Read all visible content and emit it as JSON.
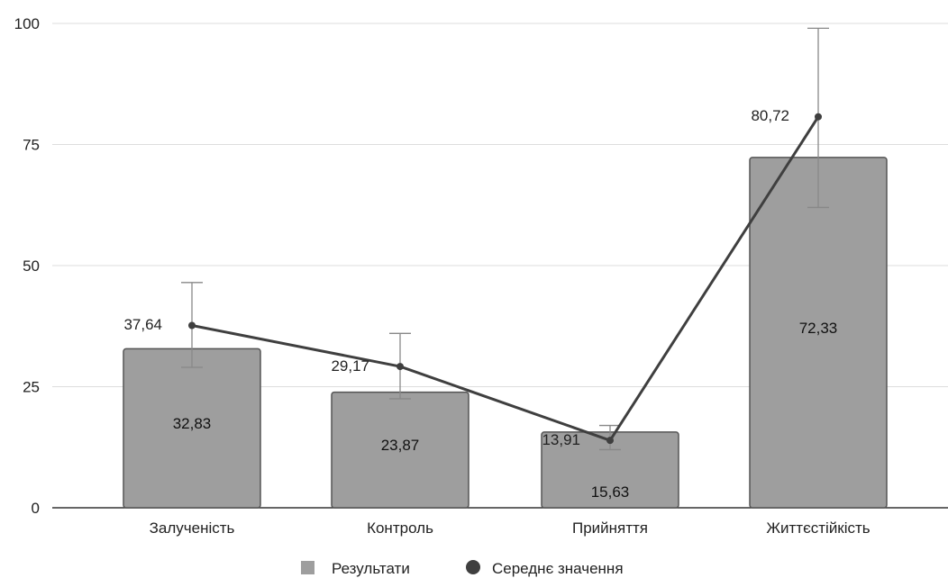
{
  "chart_data": {
    "type": "bar",
    "categories": [
      "Залученість",
      "Контроль",
      "Прийняття",
      "Життєстійкість"
    ],
    "series": [
      {
        "name": "Результати",
        "type": "bar",
        "values": [
          32.83,
          23.87,
          15.63,
          72.33
        ],
        "labels": [
          "32,83",
          "23,87",
          "15,63",
          "72,33"
        ],
        "color": "#9e9e9e"
      },
      {
        "name": "Середнє значення",
        "type": "line",
        "values": [
          37.64,
          29.17,
          13.91,
          80.72
        ],
        "labels": [
          "37,64",
          "29,17",
          "13,91",
          "80,72"
        ],
        "error_low": [
          29.0,
          22.5,
          12.0,
          62.0
        ],
        "error_high": [
          46.5,
          36.0,
          17.0,
          99.0
        ],
        "color": "#3f3f3f"
      }
    ],
    "ylim": [
      0,
      100
    ],
    "yticks": [
      0,
      25,
      50,
      75,
      100
    ],
    "grid": true,
    "legend": "bottom",
    "xlabel": "",
    "ylabel": "",
    "title": ""
  }
}
